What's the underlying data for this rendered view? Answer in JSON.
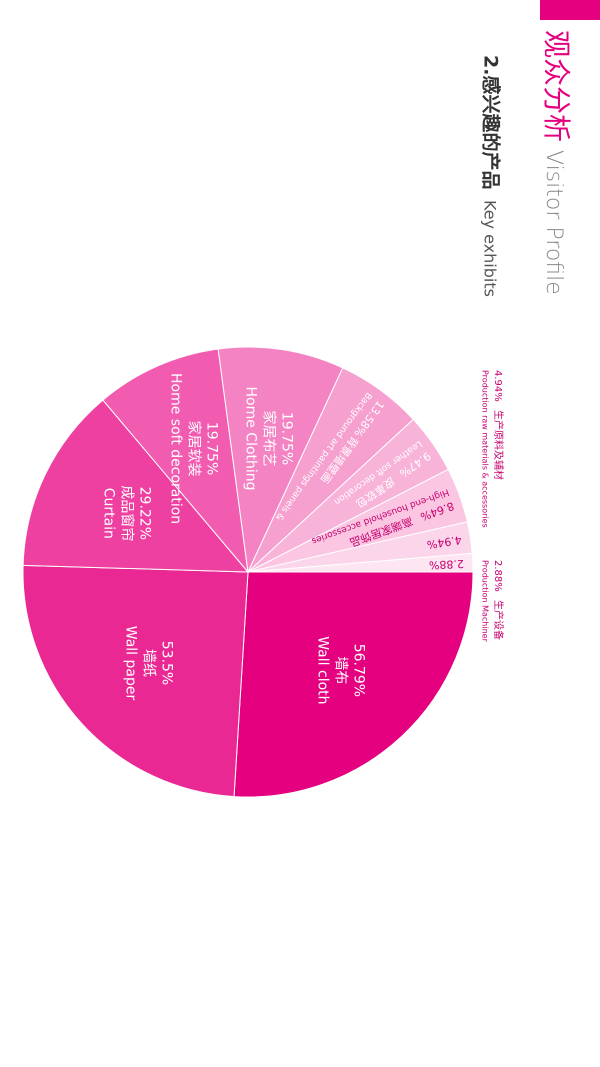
{
  "header": {
    "title_cn": "观众分析",
    "title_en": "Visitor Profile",
    "subtitle_cn": "2.感兴趣的产品",
    "subtitle_en": "Key exhibits"
  },
  "chart_data": {
    "type": "pie",
    "categories": [
      "墙布",
      "墙纸",
      "成品窗帘",
      "家居软装",
      "家居布艺",
      "背景墙壁画",
      "皮革软包",
      "高端家居饰品",
      "生产原料及辅材",
      "生产设备"
    ],
    "categories_en": [
      "Wall cloth",
      "Wall paper",
      "Curtain",
      "Home soft decoration",
      "Home Clothing",
      "Background art paintings panels &",
      "Leather soft decoration",
      "High-end household accessories",
      "Production raw materials & accessories",
      "Production Machiner"
    ],
    "values": [
      56.79,
      53.5,
      29.22,
      19.75,
      19.75,
      13.58,
      9.47,
      8.64,
      4.94,
      2.88
    ],
    "value_labels": [
      "56.79%",
      "53.5%",
      "29.22%",
      "19.75%",
      "19.75%",
      "13.58%",
      "9.47%",
      "8.64%",
      "4.94%",
      "2.88%"
    ],
    "colors": [
      "#e4007f",
      "#ea2893",
      "#ee40a1",
      "#f25cb0",
      "#f483c3",
      "#f6a0cf",
      "#f8b3d9",
      "#fac6e2",
      "#fbd5ea",
      "#fde6f2"
    ]
  }
}
